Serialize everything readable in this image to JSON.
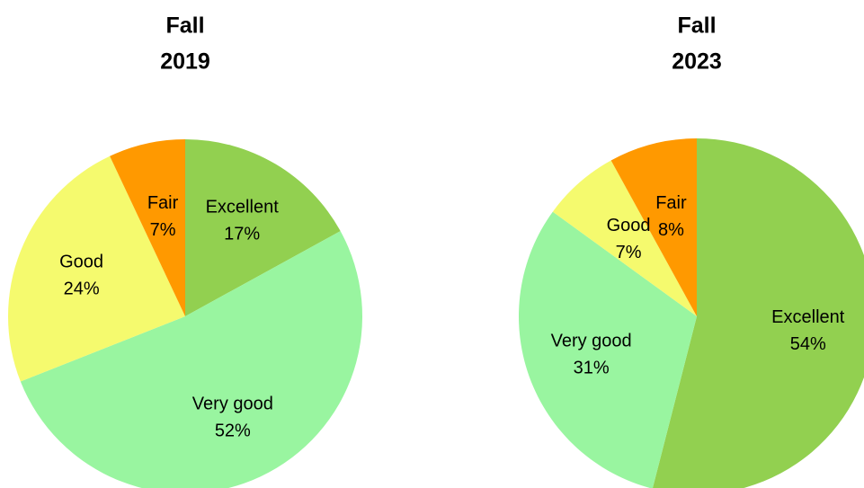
{
  "chart_data": [
    {
      "type": "pie",
      "title": [
        "Fall",
        "2019"
      ],
      "categories": [
        "Excellent",
        "Very good",
        "Good",
        "Fair"
      ],
      "values": [
        17,
        52,
        24,
        7
      ],
      "value_labels": [
        "17%",
        "52%",
        "24%",
        "7%"
      ],
      "colors": [
        "#92d050",
        "#99f5a0",
        "#f5fa6e",
        "#ff9900"
      ]
    },
    {
      "type": "pie",
      "title": [
        "Fall",
        "2023"
      ],
      "categories": [
        "Excellent",
        "Very good",
        "Good",
        "Fair"
      ],
      "values": [
        54,
        31,
        7,
        8
      ],
      "value_labels": [
        "54%",
        "31%",
        "7%",
        "8%"
      ],
      "colors": [
        "#92d050",
        "#99f5a0",
        "#f5fa6e",
        "#ff9900"
      ]
    }
  ]
}
